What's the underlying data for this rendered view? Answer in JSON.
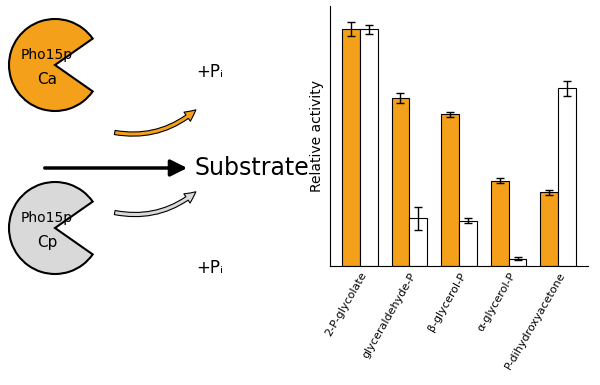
{
  "diagram": {
    "enzymes": [
      {
        "label": "Pho15p",
        "sub": "Ca",
        "color": "#f5a01a"
      },
      {
        "label": "Pho15p",
        "sub": "Cp",
        "color": "#d9d9d9"
      }
    ],
    "substrate": "Substrate",
    "product": "+Pᵢ"
  },
  "chart_data": {
    "type": "bar",
    "y_label": "Relative activity",
    "categories": [
      "2-P-glycolate",
      "glyceraldehyde-P",
      "β-glycerol-P",
      "α-glycerol-P",
      "P-dihydroxyacetone"
    ],
    "series": [
      {
        "color": "#f5a01a",
        "values": [
          100,
          71,
          64,
          36,
          31
        ],
        "errors": [
          3,
          2,
          1,
          1,
          1
        ]
      },
      {
        "color": "#ffffff",
        "values": [
          100,
          20,
          19,
          3,
          75
        ],
        "errors": [
          2,
          5,
          1,
          0.5,
          3
        ]
      }
    ],
    "ylim": [
      0,
      110
    ],
    "yticks": [],
    "tick_labels": "x"
  }
}
